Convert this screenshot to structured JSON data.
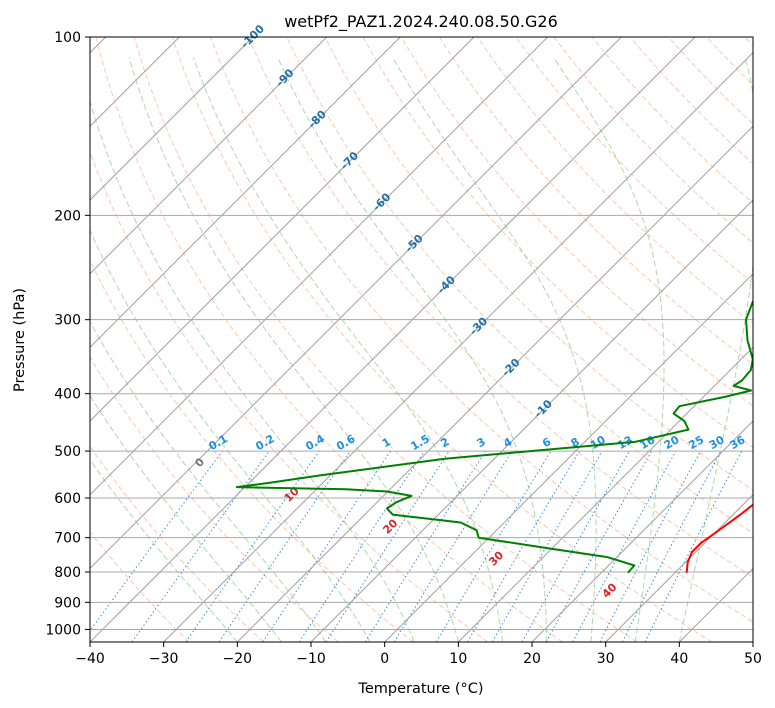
{
  "chart_data": {
    "type": "line",
    "title": "wetPf2_PAZ1.2024.240.08.50.G26",
    "xlabel": "Temperature (°C)",
    "ylabel": "Pressure (hPa)",
    "xlim": [
      -40,
      50
    ],
    "ylim": [
      1050,
      100
    ],
    "y_scale": "log",
    "x_ticks": [
      "−40",
      "−30",
      "−20",
      "−10",
      "0",
      "10",
      "20",
      "30",
      "40",
      "50"
    ],
    "y_ticks": [
      {
        "p": 100,
        "label": "100"
      },
      {
        "p": 200,
        "label": "200"
      },
      {
        "p": 300,
        "label": "300"
      },
      {
        "p": 400,
        "label": "400"
      },
      {
        "p": 500,
        "label": "500"
      },
      {
        "p": 600,
        "label": "600"
      },
      {
        "p": 700,
        "label": "700"
      },
      {
        "p": 800,
        "label": "800"
      },
      {
        "p": 900,
        "label": "900"
      },
      {
        "p": 1000,
        "label": "1000"
      }
    ],
    "grid": true,
    "colors": {
      "temperature": "#ff0000",
      "dewpoint": "#008000",
      "isotherm": "#a0a0a0",
      "dry_adiabat": "#ff9966",
      "moist_adiabat": "#8cc88c",
      "mixing_ratio": "#1f77d4",
      "isotherm_label": "#1f6fa8",
      "dry_adiabat_label": "#d62728",
      "dry_adiabat_zero_label": "#777777",
      "mixing_ratio_label": "#1f8fe0"
    },
    "series": [
      {
        "name": "temperature",
        "points": [
          [
            10,
            100
          ],
          [
            7.5,
            110
          ],
          [
            6.2,
            120
          ],
          [
            6.0,
            130
          ],
          [
            6.5,
            140
          ],
          [
            7.0,
            155
          ],
          [
            7.5,
            170
          ],
          [
            8.8,
            180
          ],
          [
            10.5,
            195
          ],
          [
            12.8,
            210
          ],
          [
            14.6,
            225
          ],
          [
            15.6,
            240
          ],
          [
            17.4,
            260
          ],
          [
            19.4,
            280
          ],
          [
            20.8,
            300
          ],
          [
            22.0,
            320
          ],
          [
            23.2,
            345
          ],
          [
            24.4,
            370
          ],
          [
            25.2,
            392
          ],
          [
            25.5,
            405
          ],
          [
            26.6,
            425
          ],
          [
            27.7,
            450
          ],
          [
            28.9,
            480
          ],
          [
            29.8,
            500
          ],
          [
            30.5,
            525
          ],
          [
            31.1,
            545
          ],
          [
            31.6,
            565
          ],
          [
            31.8,
            580
          ],
          [
            31.6,
            600
          ],
          [
            31.3,
            620
          ],
          [
            31.0,
            640
          ],
          [
            30.6,
            660
          ],
          [
            30.0,
            690
          ],
          [
            29.5,
            715
          ],
          [
            29.5,
            740
          ],
          [
            30.3,
            770
          ],
          [
            31.5,
            800
          ]
        ]
      },
      {
        "name": "dewpoint",
        "points": [
          [
            5,
            100
          ],
          [
            4.5,
            108
          ],
          [
            3.3,
            115
          ],
          [
            2.0,
            125
          ],
          [
            1.5,
            135
          ],
          [
            1.7,
            150
          ],
          [
            2.2,
            160
          ],
          [
            4.5,
            170
          ],
          [
            7.0,
            180
          ],
          [
            7.2,
            192
          ],
          [
            7.0,
            205
          ],
          [
            8.0,
            215
          ],
          [
            8.9,
            222
          ],
          [
            8.6,
            232
          ],
          [
            7.5,
            242
          ],
          [
            5.4,
            255
          ],
          [
            3.5,
            268
          ],
          [
            3.8,
            280
          ],
          [
            5.3,
            300
          ],
          [
            8.3,
            325
          ],
          [
            11.6,
            350
          ],
          [
            12.8,
            365
          ],
          [
            13.0,
            380
          ],
          [
            12.6,
            388
          ],
          [
            15.6,
            395
          ],
          [
            12.9,
            405
          ],
          [
            8.0,
            420
          ],
          [
            8.2,
            432
          ],
          [
            10.7,
            445
          ],
          [
            12.4,
            460
          ],
          [
            6.9,
            482
          ],
          [
            -16.7,
            515
          ],
          [
            -31.6,
            550
          ],
          [
            -37.0,
            565
          ],
          [
            -41.1,
            575
          ],
          [
            -26.0,
            580
          ],
          [
            -20.1,
            585
          ],
          [
            -16.2,
            595
          ],
          [
            -17.4,
            610
          ],
          [
            -17.8,
            625
          ],
          [
            -16.2,
            640
          ],
          [
            -5.9,
            660
          ],
          [
            -2.7,
            680
          ],
          [
            -1.4,
            700
          ],
          [
            9.7,
            730
          ],
          [
            18.7,
            755
          ],
          [
            23.5,
            780
          ],
          [
            23.6,
            800
          ]
        ]
      }
    ],
    "isotherm_labels": [
      "-100",
      "-90",
      "-80",
      "-70",
      "-60",
      "-50",
      "-40",
      "-30",
      "-20",
      "-10"
    ],
    "dry_adiabat_labels": [
      "0",
      "10",
      "20",
      "30",
      "40"
    ],
    "mixing_ratio_labels": [
      "0.1",
      "0.2",
      "0.4",
      "0.6",
      "1",
      "1.5",
      "2",
      "3",
      "4",
      "6",
      "8",
      "10",
      "13",
      "16",
      "20",
      "25",
      "30",
      "36"
    ]
  }
}
